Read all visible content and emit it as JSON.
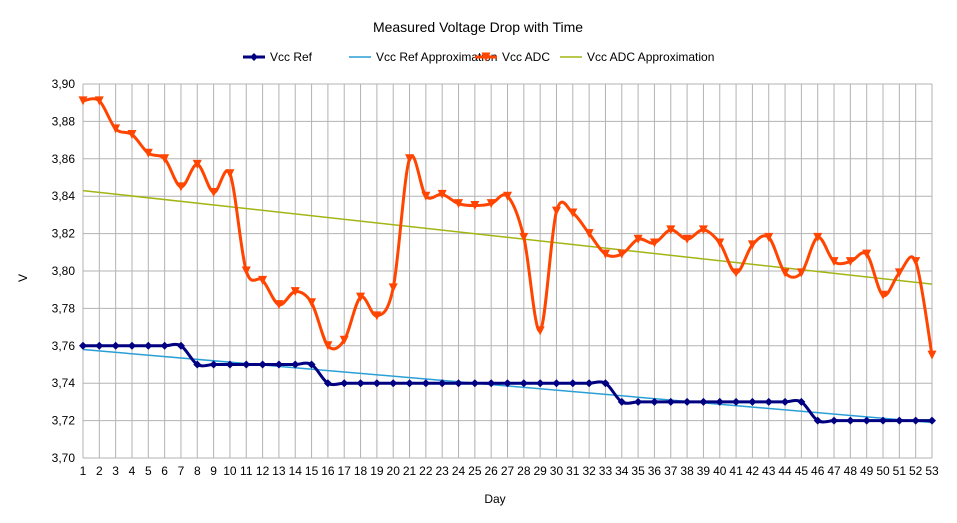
{
  "chart_data": {
    "type": "line",
    "title": "Measured Voltage Drop with Time",
    "xlabel": "Day",
    "ylabel": "V",
    "xlim": [
      1,
      53
    ],
    "ylim": [
      3.7,
      3.9
    ],
    "y_ticks": [
      "3,70",
      "3,72",
      "3,74",
      "3,76",
      "3,78",
      "3,80",
      "3,82",
      "3,84",
      "3,86",
      "3,88",
      "3,90"
    ],
    "y_tick_values": [
      3.7,
      3.72,
      3.74,
      3.76,
      3.78,
      3.8,
      3.82,
      3.84,
      3.86,
      3.88,
      3.9
    ],
    "x": [
      1,
      2,
      3,
      4,
      5,
      6,
      7,
      8,
      9,
      10,
      11,
      12,
      13,
      14,
      15,
      16,
      17,
      18,
      19,
      20,
      21,
      22,
      23,
      24,
      25,
      26,
      27,
      28,
      29,
      30,
      31,
      32,
      33,
      34,
      35,
      36,
      37,
      38,
      39,
      40,
      41,
      42,
      43,
      44,
      45,
      46,
      47,
      48,
      49,
      50,
      51,
      52,
      53
    ],
    "grid": true,
    "legend_position": "top",
    "series": [
      {
        "name": "Vcc Ref",
        "color": "#000080",
        "marker": "diamond",
        "smooth": true,
        "values": [
          3.76,
          3.76,
          3.76,
          3.76,
          3.76,
          3.76,
          3.76,
          3.75,
          3.75,
          3.75,
          3.75,
          3.75,
          3.75,
          3.75,
          3.75,
          3.74,
          3.74,
          3.74,
          3.74,
          3.74,
          3.74,
          3.74,
          3.74,
          3.74,
          3.74,
          3.74,
          3.74,
          3.74,
          3.74,
          3.74,
          3.74,
          3.74,
          3.74,
          3.73,
          3.73,
          3.73,
          3.73,
          3.73,
          3.73,
          3.73,
          3.73,
          3.73,
          3.73,
          3.73,
          3.73,
          3.72,
          3.72,
          3.72,
          3.72,
          3.72,
          3.72,
          3.72,
          3.72
        ]
      },
      {
        "name": "Vcc Ref Approximation",
        "color": "#2a9fd6",
        "marker": "none",
        "trend": true,
        "values_at_ends": [
          3.758,
          3.719
        ]
      },
      {
        "name": "Vcc ADC",
        "color": "#ff4500",
        "marker": "triangle-down",
        "smooth": true,
        "values": [
          3.891,
          3.891,
          3.876,
          3.873,
          3.863,
          3.86,
          3.845,
          3.857,
          3.842,
          3.852,
          3.8,
          3.795,
          3.782,
          3.789,
          3.783,
          3.76,
          3.763,
          3.786,
          3.776,
          3.791,
          3.86,
          3.84,
          3.841,
          3.836,
          3.835,
          3.836,
          3.84,
          3.818,
          3.768,
          3.832,
          3.831,
          3.82,
          3.809,
          3.809,
          3.817,
          3.815,
          3.822,
          3.817,
          3.822,
          3.815,
          3.799,
          3.814,
          3.818,
          3.799,
          3.799,
          3.818,
          3.805,
          3.805,
          3.809,
          3.787,
          3.799,
          3.805,
          3.755
        ]
      },
      {
        "name": "Vcc ADC Approximation",
        "color": "#a3b514",
        "marker": "none",
        "trend": true,
        "values_at_ends": [
          3.843,
          3.793
        ]
      }
    ]
  }
}
